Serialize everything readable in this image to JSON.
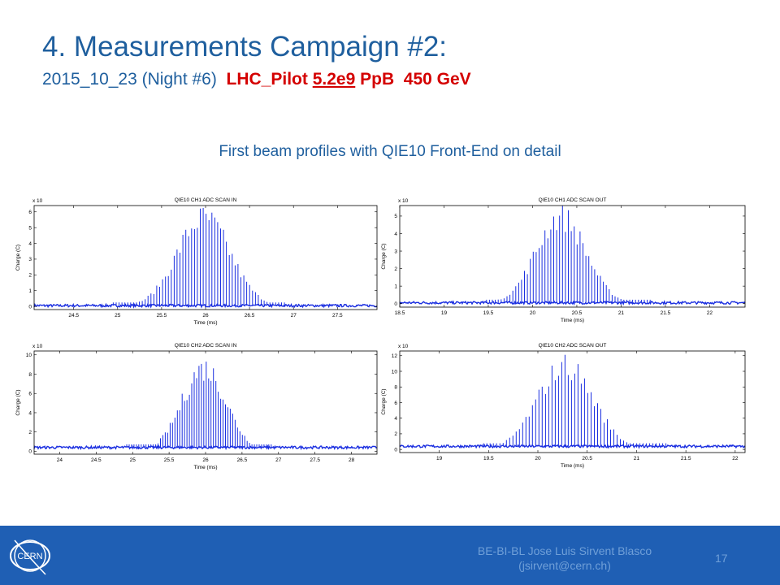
{
  "slide": {
    "title": "4. Measurements Campaign #2:",
    "subtitle_date": "2015_10_23",
    "subtitle_night": "(Night #6)",
    "subtitle_beam": "LHC_Pilot",
    "subtitle_intensity": "5.2e9",
    "subtitle_ppb": "PpB",
    "subtitle_energy": "450 GeV",
    "caption": "First beam profiles with QIE10 Front-End on detail"
  },
  "footer": {
    "line1": "BE-BI-BL Jose Luis Sirvent Blasco",
    "line2": "(jsirvent@cern.ch)",
    "page_number": "17",
    "logo_text": "CERN",
    "background_color": "#1f5fb4"
  },
  "chart_data": [
    {
      "type": "bar",
      "title": "QIE10 CH1 ADC SCAN IN",
      "xlabel": "Time (ms)",
      "ylabel": "Charge (C)",
      "multiplier": "x 10",
      "xlim": [
        24.05,
        27.95
      ],
      "ylim": [
        -0.2,
        6.4
      ],
      "xticks": [
        "24.5",
        "25",
        "25.5",
        "26",
        "26.5",
        "27",
        "27.5"
      ],
      "yticks": [
        "0",
        "1",
        "2",
        "3",
        "4",
        "5",
        "6"
      ],
      "baseline": 0.05,
      "peaks": {
        "start": 24.95,
        "end": 26.92,
        "center": 25.98,
        "sigma": 0.3,
        "amplitude": 6.0,
        "spacing": 0.033
      },
      "color": "#1a2ee0"
    },
    {
      "type": "bar",
      "title": "QIE10 CH1 ADC SCAN OUT",
      "xlabel": "Time (ms)",
      "ylabel": "Charge (C)",
      "multiplier": "x 10",
      "xlim": [
        18.5,
        22.4
      ],
      "ylim": [
        -0.2,
        5.6
      ],
      "xticks": [
        "18.5",
        "19",
        "19.5",
        "20",
        "20.5",
        "21",
        "21.5",
        "22"
      ],
      "yticks": [
        "0",
        "1",
        "2",
        "3",
        "4",
        "5"
      ],
      "baseline": 0.05,
      "peaks": {
        "start": 19.48,
        "end": 21.35,
        "center": 20.32,
        "sigma": 0.28,
        "amplitude": 5.3,
        "spacing": 0.033
      },
      "color": "#1a2ee0"
    },
    {
      "type": "bar",
      "title": "QIE10 CH2 ADC SCAN IN",
      "xlabel": "Time (ms)",
      "ylabel": "Charge (C)",
      "multiplier": "x 10",
      "xlim": [
        23.65,
        28.35
      ],
      "ylim": [
        -0.3,
        10.4
      ],
      "xticks": [
        "24",
        "24.5",
        "25",
        "25.5",
        "26",
        "26.5",
        "27",
        "27.5",
        "28"
      ],
      "yticks": [
        "0",
        "2",
        "4",
        "6",
        "8",
        "10"
      ],
      "baseline": 0.4,
      "peaks": {
        "start": 24.92,
        "end": 26.92,
        "center": 25.98,
        "sigma": 0.3,
        "amplitude": 9.2,
        "spacing": 0.033
      },
      "color": "#1a2ee0"
    },
    {
      "type": "bar",
      "title": "QIE10 CH2 ADC SCAN OUT",
      "xlabel": "Time (ms)",
      "ylabel": "Charge (C)",
      "multiplier": "x 10",
      "xlim": [
        18.6,
        22.1
      ],
      "ylim": [
        -0.4,
        12.6
      ],
      "xticks": [
        "19",
        "19.5",
        "20",
        "20.5",
        "21",
        "21.5",
        "22"
      ],
      "yticks": [
        "0",
        "2",
        "4",
        "6",
        "8",
        "10",
        "12"
      ],
      "baseline": 0.4,
      "peaks": {
        "start": 19.45,
        "end": 21.3,
        "center": 20.28,
        "sigma": 0.28,
        "amplitude": 11.5,
        "spacing": 0.033
      },
      "color": "#1a2ee0"
    }
  ]
}
